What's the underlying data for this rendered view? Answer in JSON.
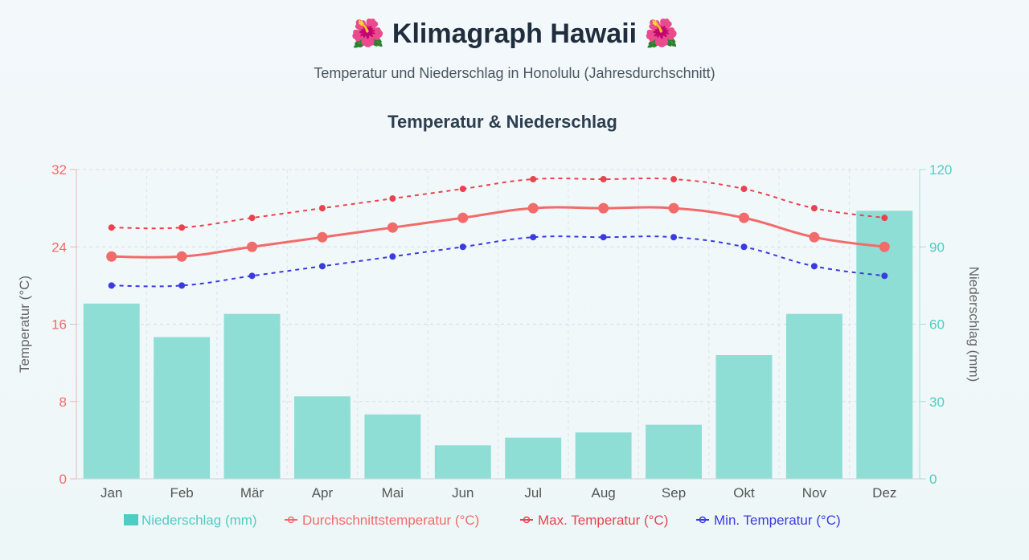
{
  "header": {
    "title": "🌺 Klimagraph Hawaii 🌺",
    "subtitle": "Temperatur und Niederschlag in Honolulu (Jahresdurchschnitt)"
  },
  "colors": {
    "left_axis": "#f26b6b",
    "right_axis": "#4ecdc4",
    "bar": "#8fded6",
    "avg_line": "#f26b6b",
    "max_line": "#e8434f",
    "min_line": "#3a3ae0"
  },
  "chart_data": {
    "type": "bar+line",
    "title": "Temperatur & Niederschlag",
    "categories": [
      "Jan",
      "Feb",
      "Mär",
      "Apr",
      "Mai",
      "Jun",
      "Jul",
      "Aug",
      "Sep",
      "Okt",
      "Nov",
      "Dez"
    ],
    "y_left": {
      "label": "Temperatur (°C)",
      "range": [
        0,
        32
      ],
      "ticks": [
        0,
        8,
        16,
        24,
        32
      ]
    },
    "y_right": {
      "label": "Niederschlag (mm)",
      "range": [
        0,
        120
      ],
      "ticks": [
        0,
        30,
        60,
        90,
        120
      ]
    },
    "grid": true,
    "legend_position": "bottom",
    "series": [
      {
        "name": "Niederschlag (mm)",
        "kind": "bar",
        "axis": "right",
        "values": [
          68,
          55,
          64,
          32,
          25,
          13,
          16,
          18,
          21,
          48,
          64,
          104
        ]
      },
      {
        "name": "Durchschnittstemperatur (°C)",
        "kind": "line",
        "style": "solid",
        "axis": "left",
        "values": [
          23,
          23,
          24,
          25,
          26,
          27,
          28,
          28,
          28,
          27,
          25,
          24
        ]
      },
      {
        "name": "Max. Temperatur (°C)",
        "kind": "line",
        "style": "dashed",
        "axis": "left",
        "values": [
          26,
          26,
          27,
          28,
          29,
          30,
          31,
          31,
          31,
          30,
          28,
          27
        ]
      },
      {
        "name": "Min. Temperatur (°C)",
        "kind": "line",
        "style": "dashed",
        "axis": "left",
        "values": [
          20,
          20,
          21,
          22,
          23,
          24,
          25,
          25,
          25,
          24,
          22,
          21
        ]
      }
    ]
  }
}
